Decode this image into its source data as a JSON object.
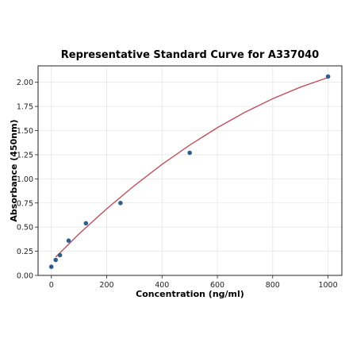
{
  "chart_data": {
    "type": "scatter",
    "title": "Representative Standard Curve for A337040",
    "xlabel": "Concentration (ng/ml)",
    "ylabel": "Absorbance (450nm)",
    "xlim": [
      -48,
      1050
    ],
    "ylim": [
      0,
      2.17
    ],
    "grid": true,
    "x_ticks": [
      "0",
      "200",
      "400",
      "600",
      "800",
      "1000"
    ],
    "y_ticks": [
      "0.00",
      "0.25",
      "0.50",
      "0.75",
      "1.00",
      "1.25",
      "1.50",
      "1.75",
      "2.00"
    ],
    "points": {
      "x": [
        0,
        15.6,
        31.25,
        62.5,
        125,
        250,
        500,
        1000
      ],
      "y": [
        0.09,
        0.16,
        0.21,
        0.36,
        0.54,
        0.75,
        1.27,
        2.06
      ]
    },
    "fit_curve": {
      "x": [
        15.6,
        100,
        200,
        300,
        400,
        500,
        600,
        700,
        800,
        900,
        1000
      ],
      "y": [
        0.19,
        0.43,
        0.69,
        0.93,
        1.15,
        1.35,
        1.53,
        1.69,
        1.83,
        1.95,
        2.05
      ]
    },
    "colors": {
      "points": "#2e5e8c",
      "fit_curve": "#c0505e",
      "axes": "#222222",
      "grid": "#e6e6e6"
    }
  }
}
